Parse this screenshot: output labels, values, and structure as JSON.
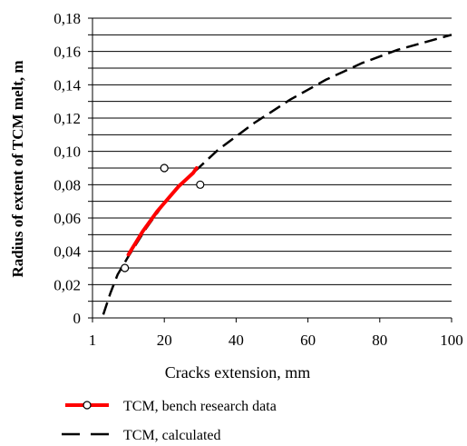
{
  "chart_data": {
    "type": "line",
    "xlabel": "Cracks extension,  mm",
    "ylabel": "Radius of extent of TCM melt, m",
    "xlim": [
      0,
      100
    ],
    "ylim": [
      0,
      0.18
    ],
    "x_ticks": [
      {
        "value": 1,
        "label": "1"
      },
      {
        "value": 20,
        "label": "20"
      },
      {
        "value": 40,
        "label": "40"
      },
      {
        "value": 60,
        "label": "60"
      },
      {
        "value": 80,
        "label": "80"
      },
      {
        "value": 100,
        "label": "100"
      }
    ],
    "y_ticks": [
      {
        "value": 0,
        "label": "0"
      },
      {
        "value": 0.02,
        "label": "0,02"
      },
      {
        "value": 0.04,
        "label": "0,04"
      },
      {
        "value": 0.06,
        "label": "0,06"
      },
      {
        "value": 0.08,
        "label": "0,08"
      },
      {
        "value": 0.1,
        "label": "0,10"
      },
      {
        "value": 0.12,
        "label": "0,12"
      },
      {
        "value": 0.14,
        "label": "0,14"
      },
      {
        "value": 0.16,
        "label": "0,16"
      },
      {
        "value": 0.18,
        "label": "0,18"
      }
    ],
    "grid": "horizontal",
    "legend_position": "bottom",
    "series": [
      {
        "name": "TCM, bench research data",
        "color": "#ff0000",
        "style": "solid",
        "line": [
          {
            "x": 10,
            "y": 0.038
          },
          {
            "x": 12,
            "y": 0.045
          },
          {
            "x": 14,
            "y": 0.052
          },
          {
            "x": 16,
            "y": 0.058
          },
          {
            "x": 18,
            "y": 0.064
          },
          {
            "x": 20,
            "y": 0.069
          },
          {
            "x": 22,
            "y": 0.074
          },
          {
            "x": 24,
            "y": 0.079
          },
          {
            "x": 26,
            "y": 0.083
          },
          {
            "x": 28,
            "y": 0.087
          },
          {
            "x": 29,
            "y": 0.09
          }
        ],
        "points": [
          {
            "x": 9,
            "y": 0.03
          },
          {
            "x": 20,
            "y": 0.09
          },
          {
            "x": 30,
            "y": 0.08
          }
        ]
      },
      {
        "name": "TCM, calculated",
        "color": "#000000",
        "style": "dashed",
        "line": [
          {
            "x": 3,
            "y": 0.002
          },
          {
            "x": 5,
            "y": 0.015
          },
          {
            "x": 7,
            "y": 0.026
          },
          {
            "x": 10,
            "y": 0.037
          },
          {
            "x": 15,
            "y": 0.054
          },
          {
            "x": 20,
            "y": 0.069
          },
          {
            "x": 25,
            "y": 0.081
          },
          {
            "x": 30,
            "y": 0.091
          },
          {
            "x": 35,
            "y": 0.101
          },
          {
            "x": 40,
            "y": 0.109
          },
          {
            "x": 45,
            "y": 0.117
          },
          {
            "x": 50,
            "y": 0.124
          },
          {
            "x": 55,
            "y": 0.131
          },
          {
            "x": 60,
            "y": 0.137
          },
          {
            "x": 65,
            "y": 0.143
          },
          {
            "x": 70,
            "y": 0.148
          },
          {
            "x": 75,
            "y": 0.153
          },
          {
            "x": 80,
            "y": 0.157
          },
          {
            "x": 85,
            "y": 0.161
          },
          {
            "x": 90,
            "y": 0.164
          },
          {
            "x": 95,
            "y": 0.167
          },
          {
            "x": 100,
            "y": 0.17
          }
        ]
      }
    ]
  }
}
